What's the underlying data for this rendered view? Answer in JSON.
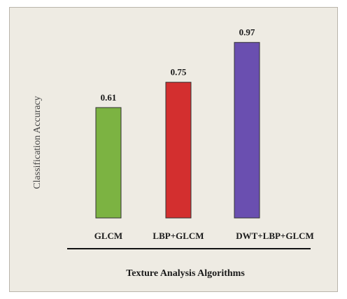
{
  "chart_data": {
    "type": "bar",
    "categories": [
      "GLCM",
      "LBP+GLCM",
      "DWT+LBP+GLCM"
    ],
    "values": [
      0.61,
      0.75,
      0.97
    ],
    "data_labels": [
      "0.61",
      "0.75",
      "0.97"
    ],
    "colors": [
      "#7cb342",
      "#d32f2f",
      "#6a4fb0"
    ],
    "title": "",
    "xlabel": "Texture Analysis Algorithms",
    "ylabel": "Classification Accuracy",
    "ylim": [
      0,
      1.05
    ],
    "grid": false,
    "legend": "none"
  }
}
